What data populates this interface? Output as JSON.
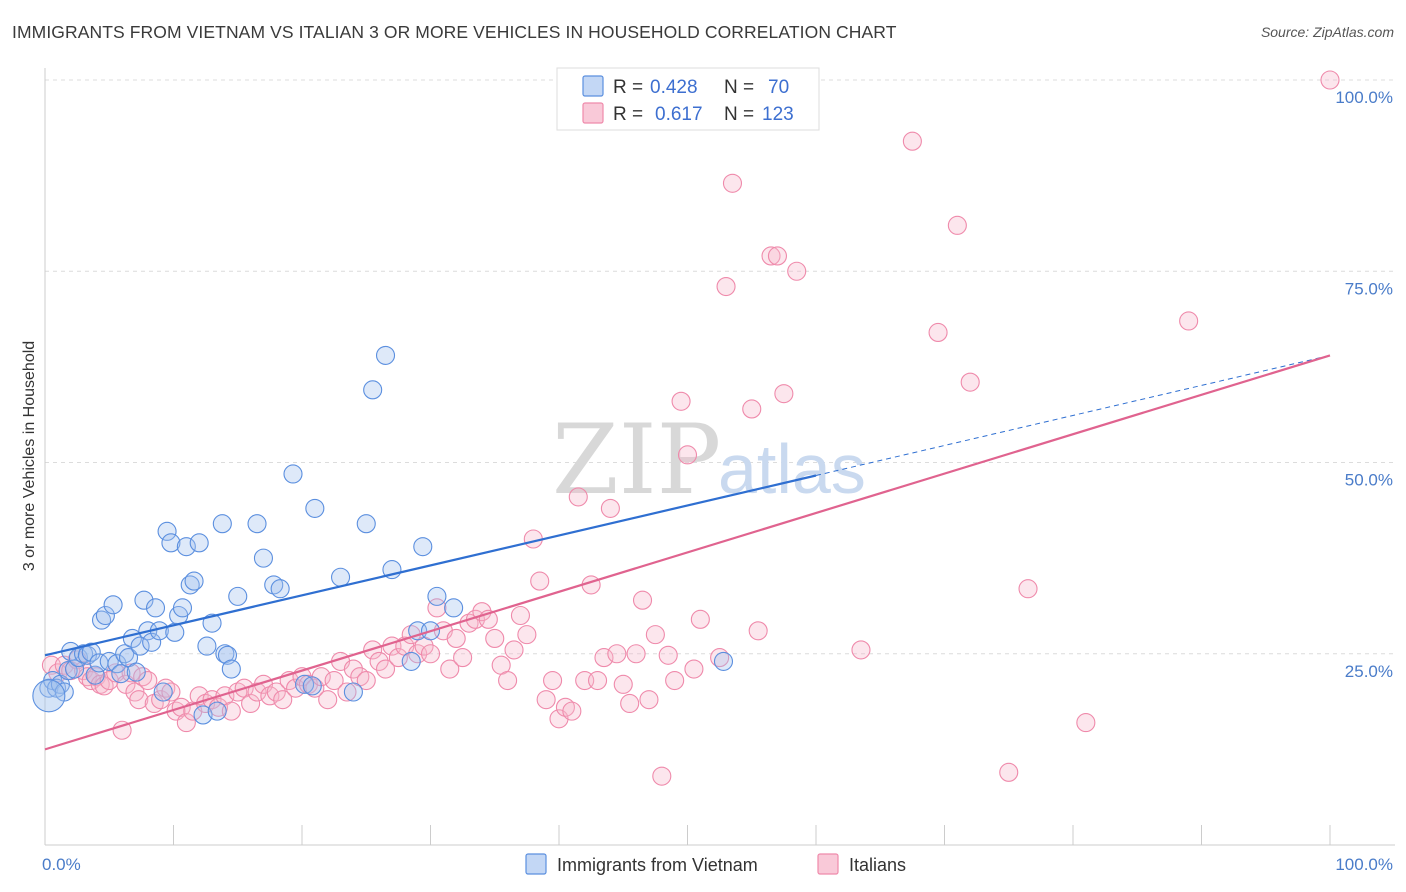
{
  "title": "IMMIGRANTS FROM VIETNAM VS ITALIAN 3 OR MORE VEHICLES IN HOUSEHOLD CORRELATION CHART",
  "source": "Source: ZipAtlas.com",
  "watermark": {
    "zip": "ZIP",
    "atlas": "atlas"
  },
  "legend": {
    "series1": {
      "r_label": "R =",
      "r_value": "0.428",
      "n_label": "N =",
      "n_value": "70"
    },
    "series2": {
      "r_label": "R =",
      "r_value": "0.617",
      "n_label": "N =",
      "n_value": "123"
    }
  },
  "chart_data": {
    "type": "scatter",
    "title": "IMMIGRANTS FROM VIETNAM VS ITALIAN 3 OR MORE VEHICLES IN HOUSEHOLD CORRELATION CHART",
    "xlabel": "",
    "ylabel": "3 or more Vehicles in Household",
    "xlim": [
      0,
      100
    ],
    "ylim": [
      0,
      100
    ],
    "x_tick_labels": [
      "0.0%",
      "100.0%"
    ],
    "y_tick_labels": [
      "100.0%",
      "75.0%",
      "50.0%",
      "25.0%"
    ],
    "y_ticks": [
      100,
      75,
      50,
      25
    ],
    "grid": "horizontal dashed",
    "legend_position": "top-center and bottom",
    "colors": {
      "vietnam": "#5b8fdf",
      "italians": "#ef8aab",
      "vietnam_line": "#2f6fd1",
      "italians_line": "#e0638f"
    },
    "series": [
      {
        "name": "Immigrants from Vietnam",
        "color": "#5b8fdf",
        "trend": {
          "x0": 0,
          "y0": 24.8,
          "x1": 60,
          "y1": 48.3,
          "dashed_to_x": 100,
          "dashed_to_y": 64.0
        },
        "points": [
          [
            0.3,
            20.5
          ],
          [
            0.6,
            21.5
          ],
          [
            0.9,
            20.5
          ],
          [
            1.2,
            21.0
          ],
          [
            1.5,
            20.0
          ],
          [
            1.8,
            22.8
          ],
          [
            2.0,
            25.3
          ],
          [
            2.3,
            23.0
          ],
          [
            2.6,
            24.5
          ],
          [
            3.0,
            25.0
          ],
          [
            3.3,
            24.8
          ],
          [
            3.6,
            25.2
          ],
          [
            3.9,
            22.2
          ],
          [
            4.2,
            23.8
          ],
          [
            4.4,
            29.4
          ],
          [
            4.7,
            30.0
          ],
          [
            5.0,
            24.0
          ],
          [
            5.3,
            31.4
          ],
          [
            5.6,
            23.7
          ],
          [
            5.9,
            22.4
          ],
          [
            6.2,
            25.0
          ],
          [
            6.5,
            24.5
          ],
          [
            6.8,
            27.0
          ],
          [
            7.1,
            22.6
          ],
          [
            7.4,
            26.0
          ],
          [
            7.7,
            32.0
          ],
          [
            8.0,
            28.0
          ],
          [
            8.3,
            26.5
          ],
          [
            8.6,
            31.0
          ],
          [
            8.9,
            28.0
          ],
          [
            9.2,
            20.0
          ],
          [
            9.5,
            41.0
          ],
          [
            9.8,
            39.5
          ],
          [
            10.1,
            27.8
          ],
          [
            10.4,
            30.0
          ],
          [
            10.7,
            31.0
          ],
          [
            11.0,
            39.0
          ],
          [
            11.3,
            34.0
          ],
          [
            11.6,
            34.5
          ],
          [
            12.0,
            39.5
          ],
          [
            12.3,
            17.0
          ],
          [
            12.6,
            26.0
          ],
          [
            13.0,
            29.0
          ],
          [
            13.4,
            17.5
          ],
          [
            13.8,
            42.0
          ],
          [
            14.0,
            25.0
          ],
          [
            14.2,
            24.8
          ],
          [
            14.5,
            23.0
          ],
          [
            15.0,
            32.5
          ],
          [
            16.5,
            42.0
          ],
          [
            17.0,
            37.5
          ],
          [
            17.8,
            34.0
          ],
          [
            18.3,
            33.5
          ],
          [
            19.3,
            48.5
          ],
          [
            20.2,
            21.0
          ],
          [
            20.8,
            20.8
          ],
          [
            21.0,
            44.0
          ],
          [
            23.0,
            35.0
          ],
          [
            24.0,
            20.0
          ],
          [
            25.0,
            42.0
          ],
          [
            25.5,
            59.5
          ],
          [
            26.5,
            64.0
          ],
          [
            27.0,
            36.0
          ],
          [
            28.5,
            24.0
          ],
          [
            29.0,
            28.0
          ],
          [
            29.4,
            39.0
          ],
          [
            30.0,
            28.0
          ],
          [
            30.5,
            32.5
          ],
          [
            31.8,
            31.0
          ],
          [
            52.8,
            24.0
          ]
        ]
      },
      {
        "name": "Italians",
        "color": "#ef8aab",
        "trend": {
          "x0": 0,
          "y0": 12.5,
          "x1": 100,
          "y1": 64.0
        },
        "points": [
          [
            0.5,
            23.5
          ],
          [
            1.0,
            22.5
          ],
          [
            1.5,
            23.5
          ],
          [
            2.0,
            22.8
          ],
          [
            2.5,
            24.2
          ],
          [
            3.0,
            22.8
          ],
          [
            3.3,
            22.0
          ],
          [
            3.6,
            21.5
          ],
          [
            4.0,
            22.0
          ],
          [
            4.3,
            21.0
          ],
          [
            4.6,
            20.8
          ],
          [
            5.0,
            21.5
          ],
          [
            5.5,
            22.5
          ],
          [
            6.0,
            15.0
          ],
          [
            6.3,
            21.0
          ],
          [
            6.7,
            22.5
          ],
          [
            7.0,
            20.0
          ],
          [
            7.3,
            19.0
          ],
          [
            7.6,
            22.0
          ],
          [
            8.0,
            21.5
          ],
          [
            8.5,
            18.5
          ],
          [
            9.0,
            19.0
          ],
          [
            9.4,
            20.5
          ],
          [
            9.8,
            20.0
          ],
          [
            10.2,
            17.5
          ],
          [
            10.6,
            18.0
          ],
          [
            11.0,
            16.0
          ],
          [
            11.5,
            17.5
          ],
          [
            12.0,
            19.5
          ],
          [
            12.5,
            18.5
          ],
          [
            13.0,
            19.0
          ],
          [
            13.5,
            18.0
          ],
          [
            14.0,
            19.5
          ],
          [
            14.5,
            17.5
          ],
          [
            15.0,
            20.0
          ],
          [
            15.5,
            20.5
          ],
          [
            16.0,
            18.5
          ],
          [
            16.5,
            20.0
          ],
          [
            17.0,
            21.0
          ],
          [
            17.5,
            19.5
          ],
          [
            18.0,
            20.0
          ],
          [
            18.5,
            19.0
          ],
          [
            19.0,
            21.5
          ],
          [
            19.5,
            20.5
          ],
          [
            20.0,
            22.0
          ],
          [
            20.5,
            21.0
          ],
          [
            21.0,
            20.5
          ],
          [
            21.5,
            22.0
          ],
          [
            22.0,
            19.0
          ],
          [
            22.5,
            21.5
          ],
          [
            23.0,
            24.0
          ],
          [
            23.5,
            20.0
          ],
          [
            24.0,
            23.0
          ],
          [
            24.5,
            22.0
          ],
          [
            25.0,
            21.5
          ],
          [
            25.5,
            25.5
          ],
          [
            26.0,
            24.0
          ],
          [
            26.5,
            23.0
          ],
          [
            27.0,
            26.0
          ],
          [
            27.5,
            24.5
          ],
          [
            28.0,
            26.0
          ],
          [
            28.5,
            27.5
          ],
          [
            29.0,
            25.0
          ],
          [
            29.5,
            26.0
          ],
          [
            30.0,
            25.0
          ],
          [
            30.5,
            31.0
          ],
          [
            31.0,
            28.0
          ],
          [
            31.5,
            23.0
          ],
          [
            32.0,
            27.0
          ],
          [
            32.5,
            24.5
          ],
          [
            33.0,
            29.0
          ],
          [
            33.5,
            29.5
          ],
          [
            34.0,
            30.5
          ],
          [
            34.5,
            29.5
          ],
          [
            35.0,
            27.0
          ],
          [
            35.5,
            23.5
          ],
          [
            36.0,
            21.5
          ],
          [
            36.5,
            25.5
          ],
          [
            37.0,
            30.0
          ],
          [
            37.5,
            27.5
          ],
          [
            38.0,
            40.0
          ],
          [
            38.5,
            34.5
          ],
          [
            39.0,
            19.0
          ],
          [
            39.5,
            21.5
          ],
          [
            40.0,
            16.5
          ],
          [
            40.5,
            18.0
          ],
          [
            41.0,
            17.5
          ],
          [
            41.5,
            45.5
          ],
          [
            42.0,
            21.5
          ],
          [
            42.5,
            34.0
          ],
          [
            43.0,
            21.5
          ],
          [
            43.5,
            24.5
          ],
          [
            44.0,
            44.0
          ],
          [
            44.5,
            25.0
          ],
          [
            45.0,
            21.0
          ],
          [
            45.5,
            18.5
          ],
          [
            46.0,
            25.0
          ],
          [
            46.5,
            32.0
          ],
          [
            47.0,
            19.0
          ],
          [
            47.5,
            27.5
          ],
          [
            48.0,
            9.0
          ],
          [
            48.5,
            24.8
          ],
          [
            49.0,
            21.5
          ],
          [
            49.5,
            58.0
          ],
          [
            50.0,
            51.0
          ],
          [
            50.5,
            23.0
          ],
          [
            51.0,
            29.5
          ],
          [
            52.5,
            24.5
          ],
          [
            53.0,
            73.0
          ],
          [
            53.5,
            86.5
          ],
          [
            55.0,
            57.0
          ],
          [
            55.5,
            28.0
          ],
          [
            56.5,
            77.0
          ],
          [
            57.0,
            77.0
          ],
          [
            57.5,
            59.0
          ],
          [
            58.5,
            75.0
          ],
          [
            63.5,
            25.5
          ],
          [
            67.5,
            92.0
          ],
          [
            69.5,
            67.0
          ],
          [
            71.0,
            81.0
          ],
          [
            72.0,
            60.5
          ],
          [
            75.0,
            9.5
          ],
          [
            76.5,
            33.5
          ],
          [
            81.0,
            16.0
          ],
          [
            89.0,
            68.5
          ],
          [
            100.0,
            100.0
          ]
        ]
      }
    ]
  },
  "bottom_legend": {
    "series1": "Immigrants from Vietnam",
    "series2": "Italians"
  },
  "axes": {
    "y_label": "3 or more Vehicles in Household"
  }
}
